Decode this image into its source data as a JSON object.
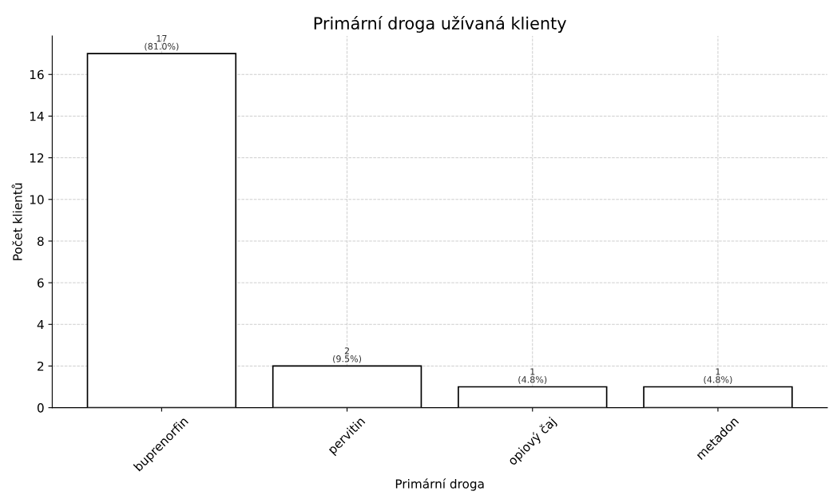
{
  "chart_data": {
    "type": "bar",
    "title": "Primární droga užívaná klienty",
    "xlabel": "Primární droga",
    "ylabel": "Počet klientů",
    "categories": [
      "buprenorfin",
      "pervitin",
      "opiový čaj",
      "metadon"
    ],
    "values": [
      17,
      2,
      1,
      1
    ],
    "color": "#ffffff",
    "value_labels": [
      "17\n(81.0%)",
      "2\n(9.5%)",
      "1\n(4.8%)",
      "1\n(4.8%)"
    ],
    "ylim": [
      0,
      17.85
    ],
    "yticks": [
      0,
      2,
      4,
      6,
      8,
      10,
      12,
      14,
      16
    ],
    "grid": true,
    "line_style": "dashed"
  }
}
